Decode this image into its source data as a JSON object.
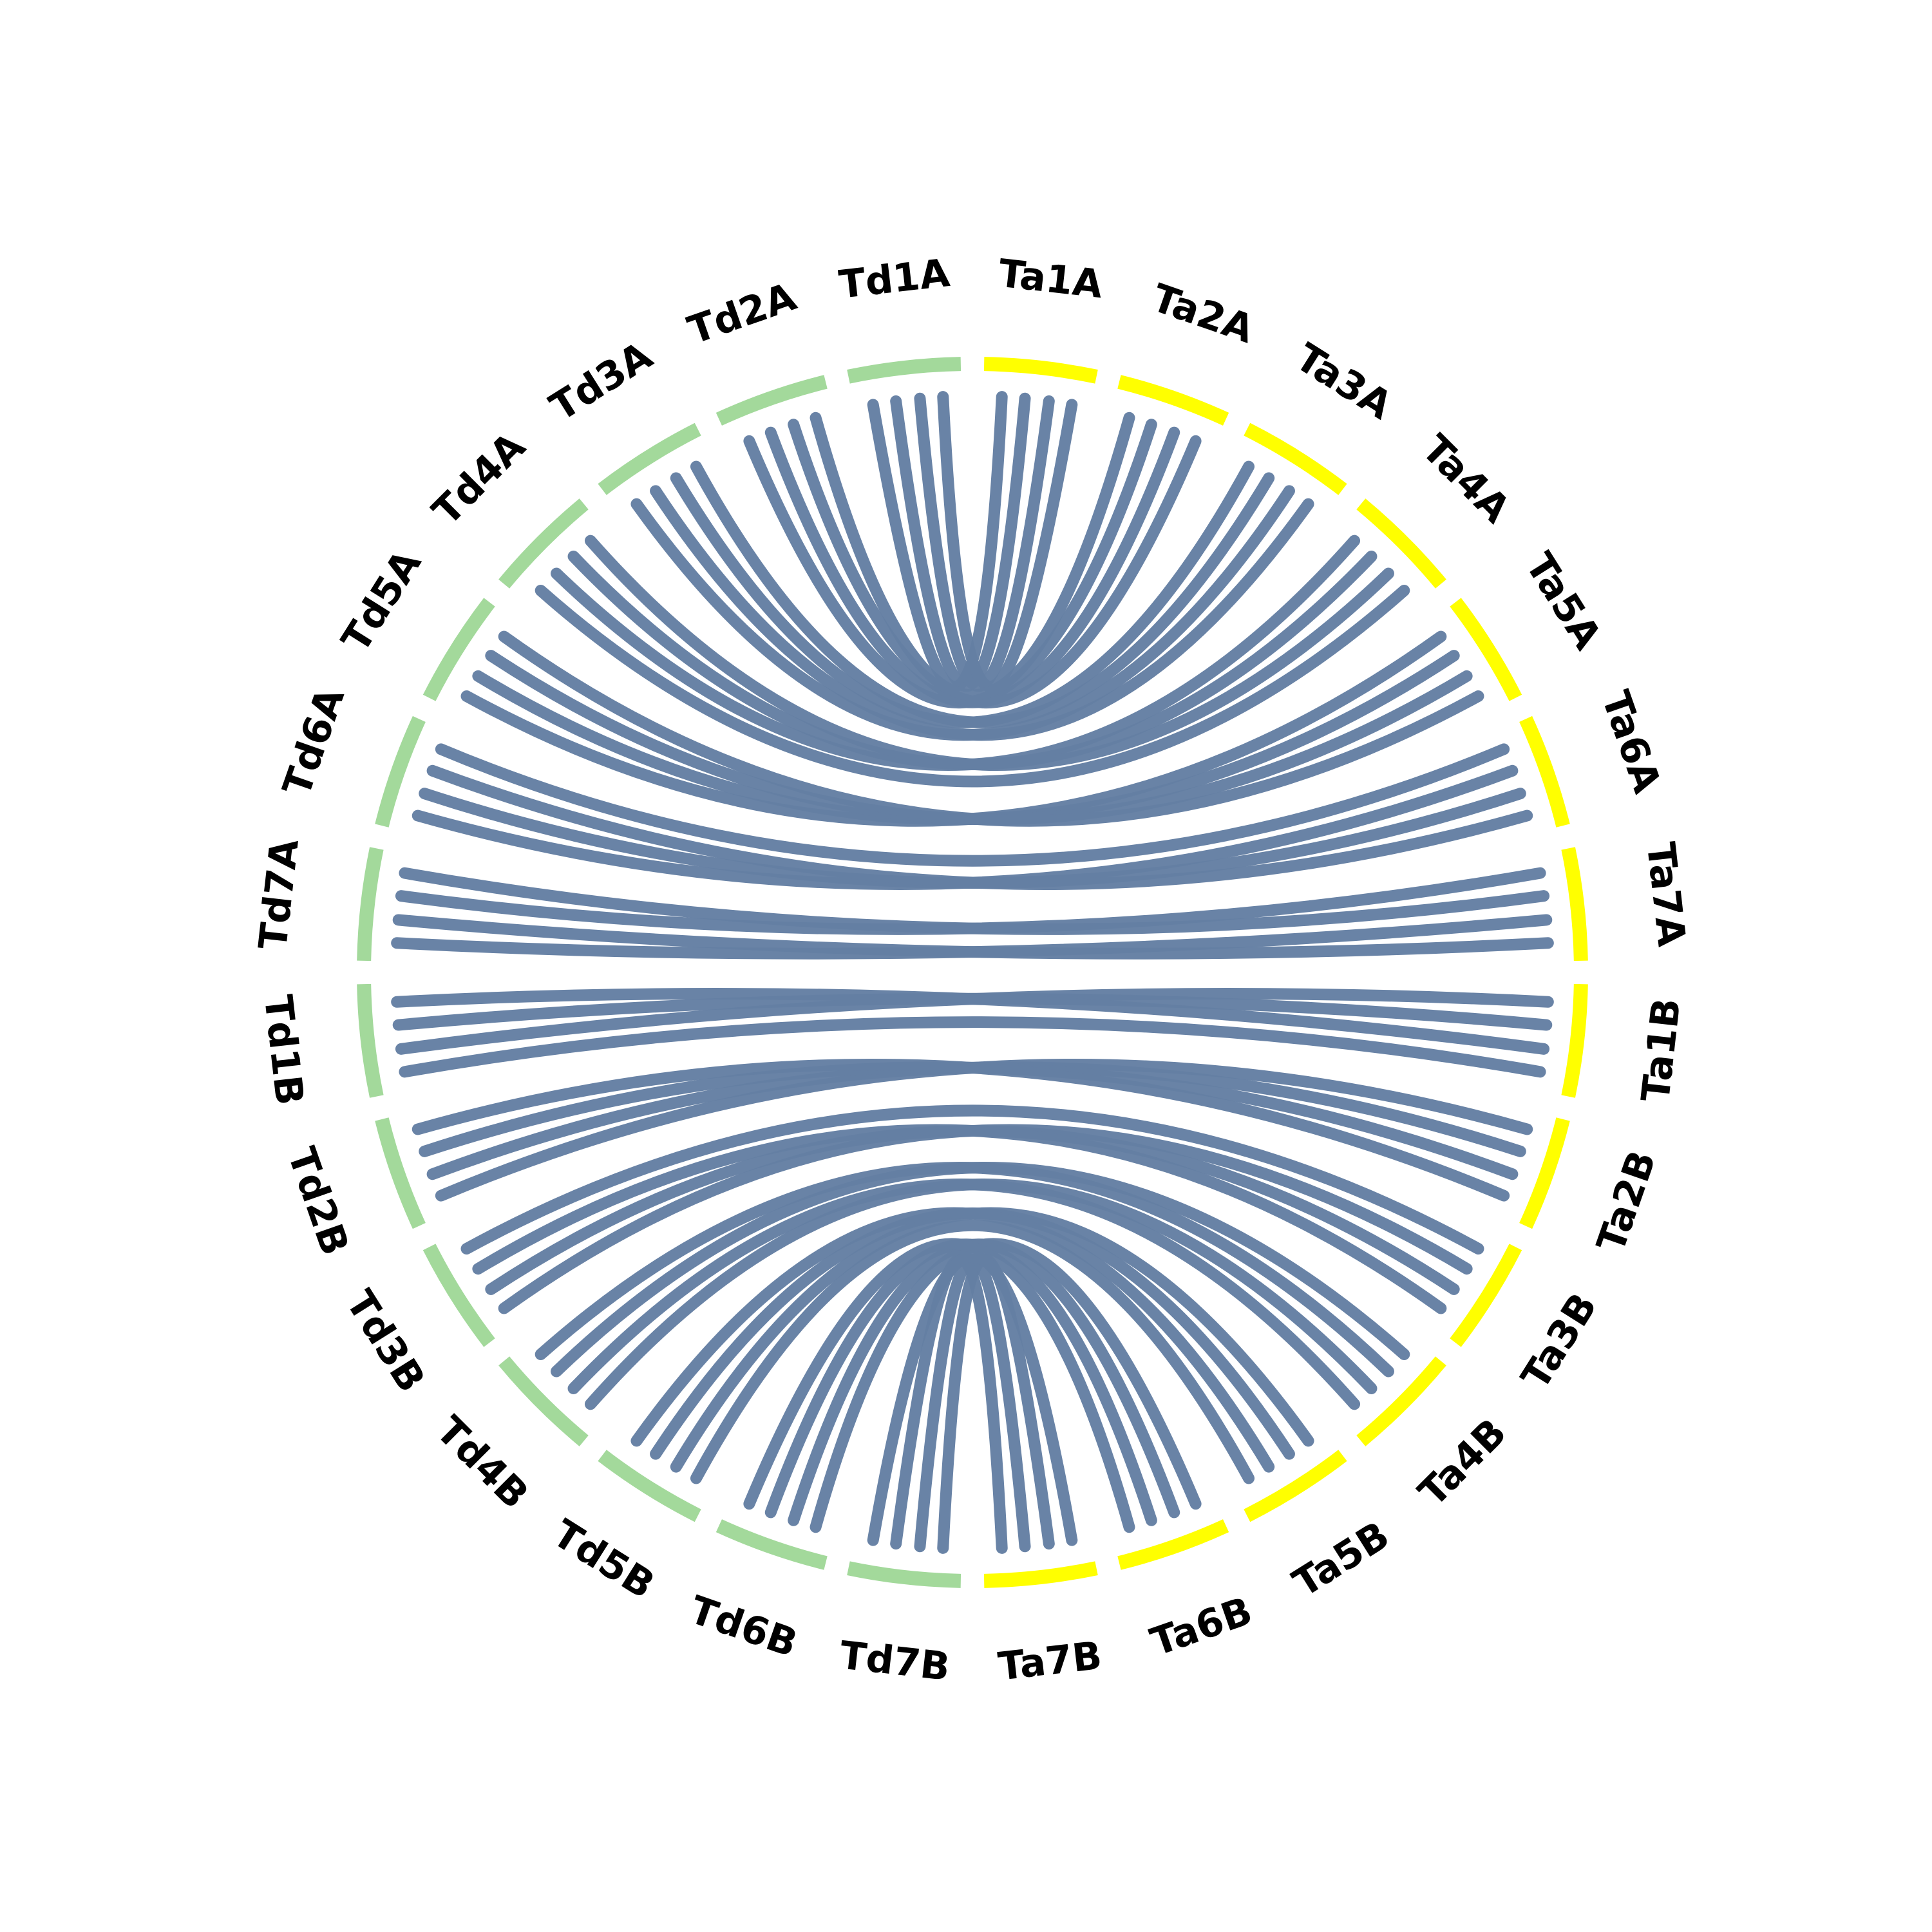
{
  "diagram": {
    "left_ring": [
      "Td1A",
      "Td2A",
      "Td3A",
      "Td4A",
      "Td5A",
      "Td6A",
      "Td7A",
      "Td1B",
      "Td2B",
      "Td3B",
      "Td4B",
      "Td5B",
      "Td6B",
      "Td7B"
    ],
    "right_ring": [
      "Ta1A",
      "Ta2A",
      "Ta3A",
      "Ta4A",
      "Ta5A",
      "Ta6A",
      "Ta7A",
      "Ta1B",
      "Ta2B",
      "Ta3B",
      "Ta4B",
      "Ta5B",
      "Ta6B",
      "Ta7B"
    ]
  }
}
